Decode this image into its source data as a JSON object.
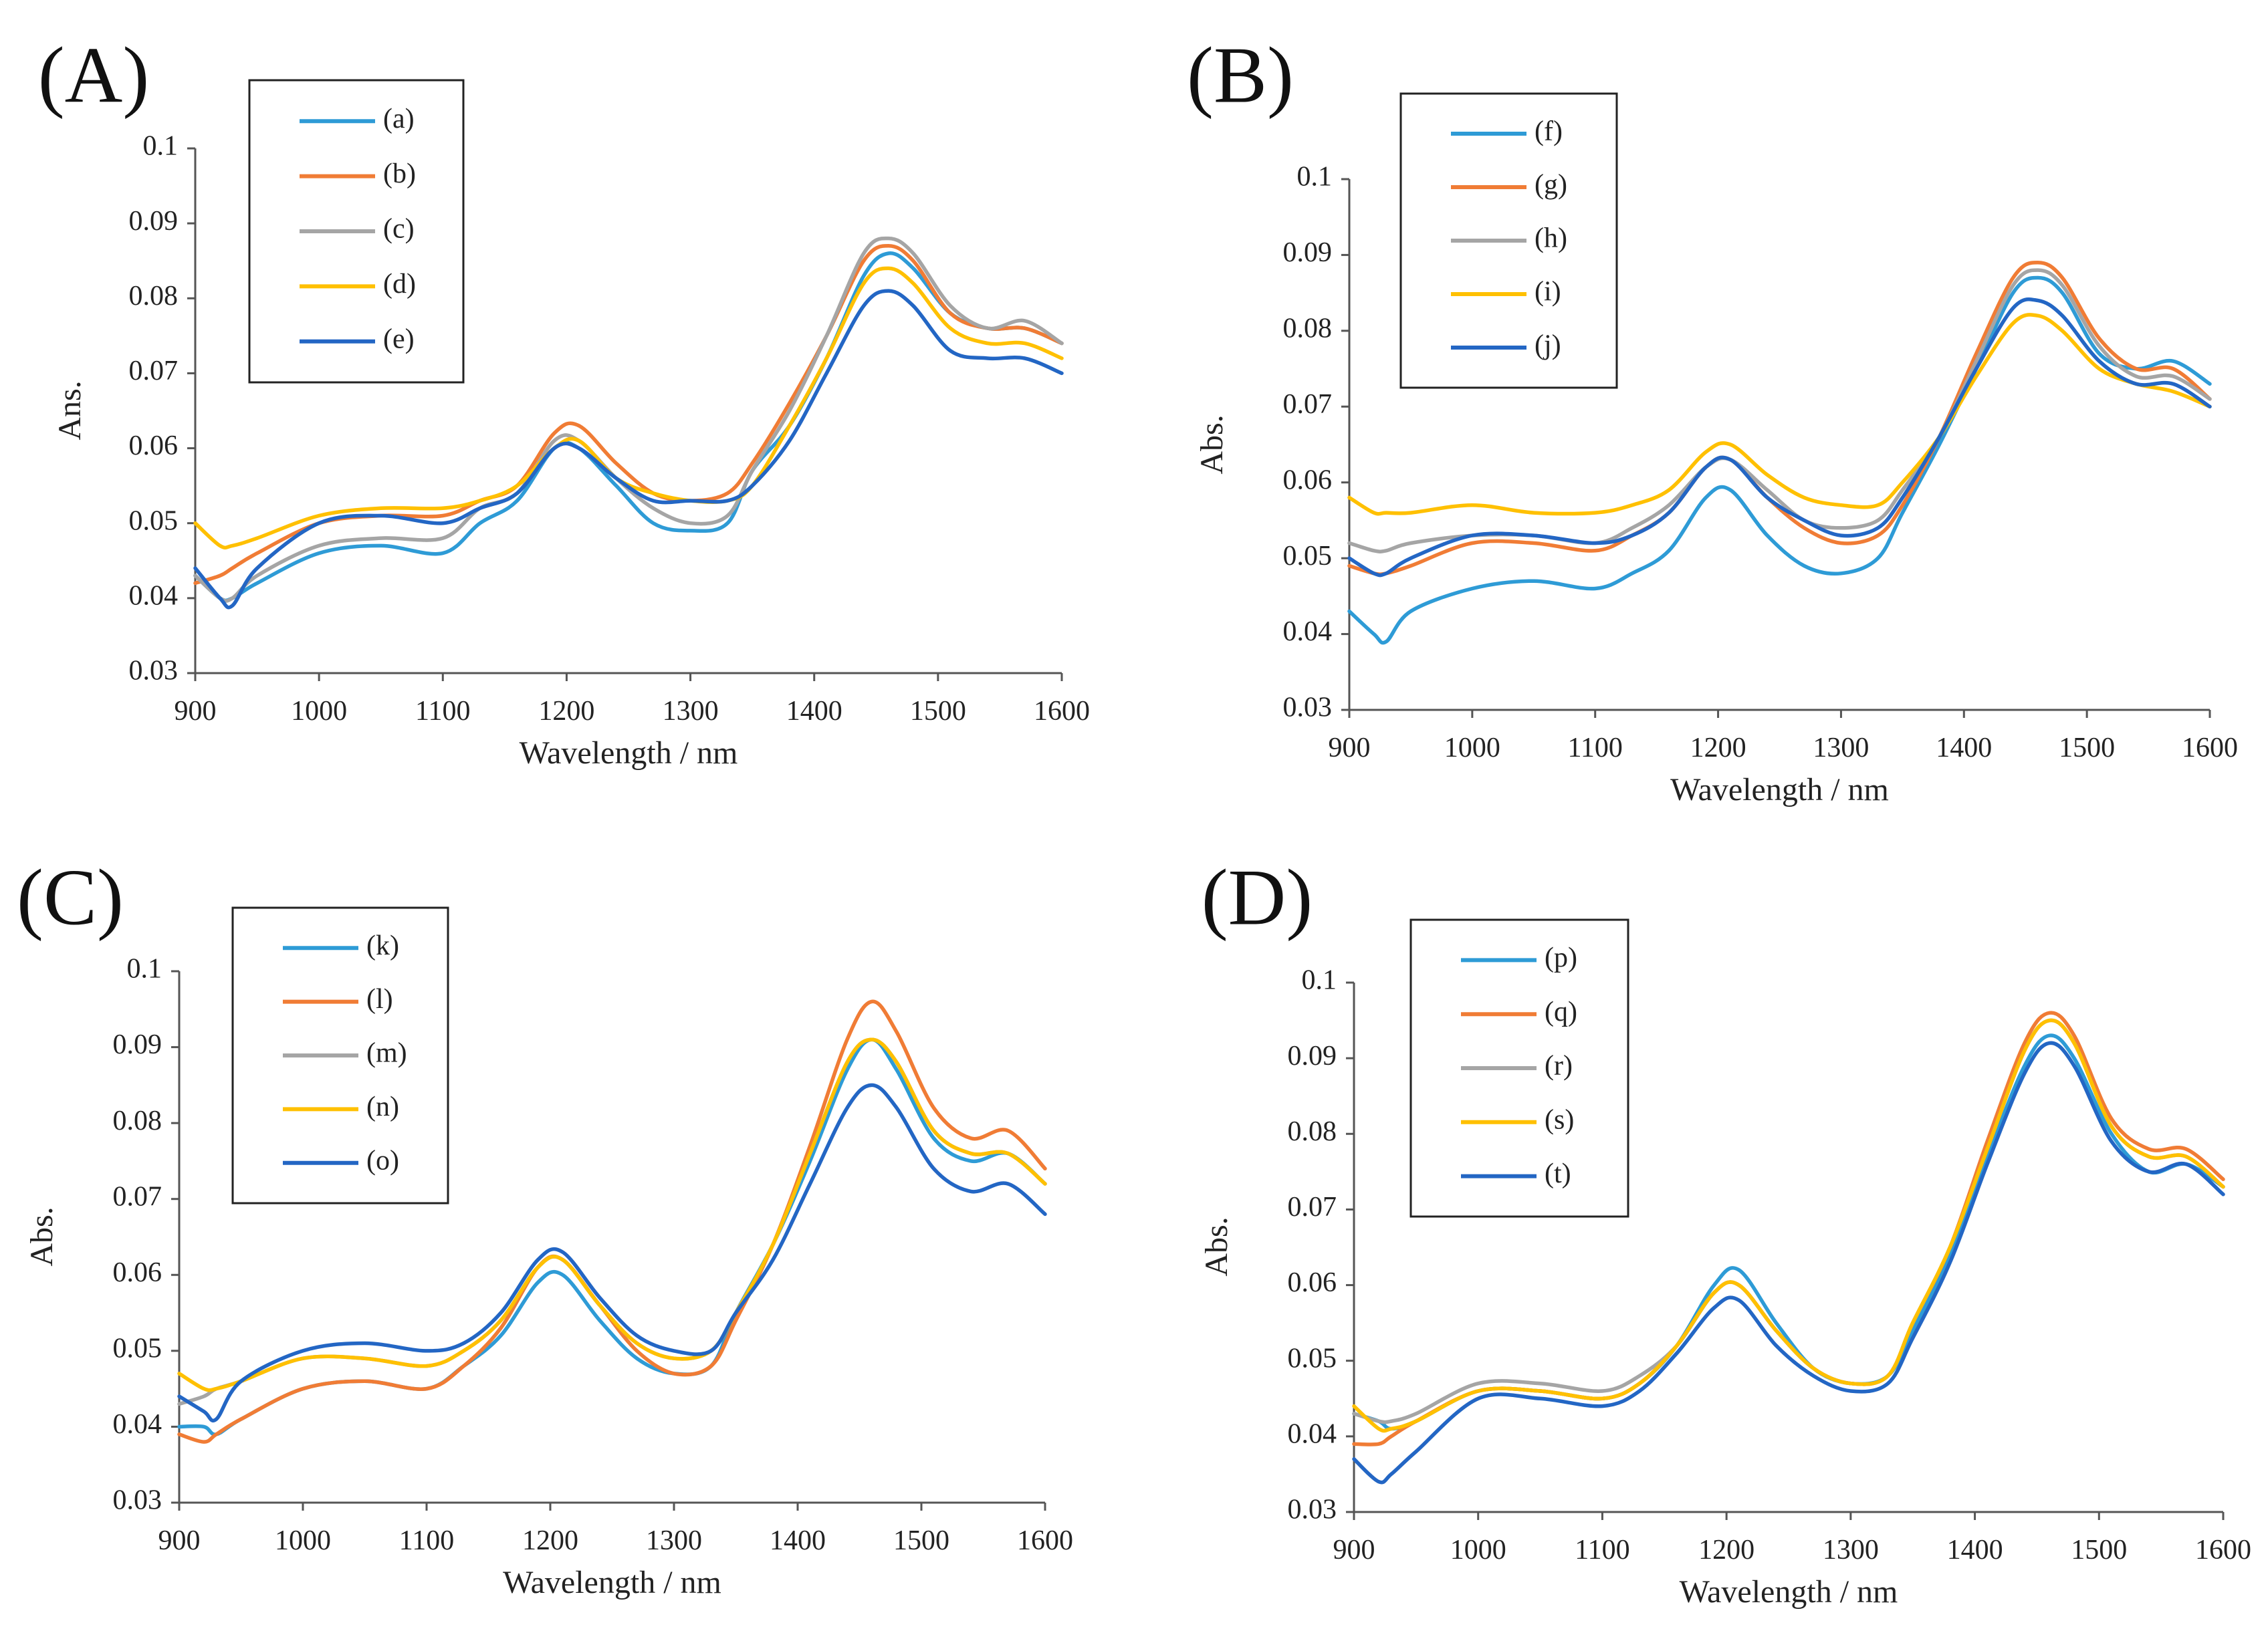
{
  "chart_data": [
    {
      "type": "line",
      "panel": "(A)",
      "xlabel": "Wavelength / nm",
      "ylabel": "Ans.",
      "xlim": [
        900,
        1600
      ],
      "ylim": [
        0.03,
        0.1
      ],
      "x_ticks": [
        "900",
        "1000",
        "1100",
        "1200",
        "1300",
        "1400",
        "1500",
        "1600"
      ],
      "y_ticks": [
        "0.03",
        "0.04",
        "0.05",
        "0.06",
        "0.07",
        "0.08",
        "0.09",
        "0.1"
      ],
      "grid": false,
      "legend_position": "top-left",
      "x": [
        900,
        920,
        930,
        950,
        1000,
        1050,
        1100,
        1130,
        1160,
        1190,
        1210,
        1240,
        1270,
        1300,
        1330,
        1350,
        1380,
        1410,
        1440,
        1460,
        1480,
        1510,
        1540,
        1570,
        1600
      ],
      "series": [
        {
          "name": "(a)",
          "color": "#2E9BD6",
          "values": [
            0.043,
            0.04,
            0.04,
            0.042,
            0.046,
            0.047,
            0.046,
            0.05,
            0.053,
            0.06,
            0.06,
            0.055,
            0.05,
            0.049,
            0.05,
            0.057,
            0.063,
            0.072,
            0.083,
            0.086,
            0.084,
            0.078,
            0.076,
            0.076,
            0.074
          ]
        },
        {
          "name": "(b)",
          "color": "#F07C35",
          "values": [
            0.042,
            0.043,
            0.044,
            0.046,
            0.05,
            0.051,
            0.051,
            0.053,
            0.055,
            0.062,
            0.063,
            0.058,
            0.054,
            0.053,
            0.054,
            0.058,
            0.066,
            0.075,
            0.085,
            0.087,
            0.085,
            0.078,
            0.076,
            0.076,
            0.074
          ]
        },
        {
          "name": "(c)",
          "color": "#A5A5A5",
          "values": [
            0.043,
            0.04,
            0.04,
            0.043,
            0.047,
            0.048,
            0.048,
            0.052,
            0.054,
            0.061,
            0.061,
            0.056,
            0.052,
            0.05,
            0.051,
            0.057,
            0.065,
            0.075,
            0.086,
            0.088,
            0.086,
            0.079,
            0.076,
            0.077,
            0.074
          ]
        },
        {
          "name": "(d)",
          "color": "#FFC000",
          "values": [
            0.05,
            0.047,
            0.047,
            0.048,
            0.051,
            0.052,
            0.052,
            0.053,
            0.055,
            0.06,
            0.061,
            0.056,
            0.054,
            0.053,
            0.053,
            0.055,
            0.063,
            0.072,
            0.082,
            0.084,
            0.082,
            0.076,
            0.074,
            0.074,
            0.072
          ]
        },
        {
          "name": "(e)",
          "color": "#2366C4",
          "values": [
            0.044,
            0.04,
            0.039,
            0.044,
            0.05,
            0.051,
            0.05,
            0.052,
            0.054,
            0.06,
            0.06,
            0.056,
            0.053,
            0.053,
            0.053,
            0.055,
            0.061,
            0.07,
            0.079,
            0.081,
            0.079,
            0.073,
            0.072,
            0.072,
            0.07
          ]
        }
      ]
    },
    {
      "type": "line",
      "panel": "(B)",
      "xlabel": "Wavelength / nm",
      "ylabel": "Abs.",
      "xlim": [
        900,
        1600
      ],
      "ylim": [
        0.03,
        0.1
      ],
      "x_ticks": [
        "900",
        "1000",
        "1100",
        "1200",
        "1300",
        "1400",
        "1500",
        "1600"
      ],
      "y_ticks": [
        "0.03",
        "0.04",
        "0.05",
        "0.06",
        "0.07",
        "0.08",
        "0.09",
        "0.1"
      ],
      "grid": false,
      "legend_position": "top-left",
      "x": [
        900,
        920,
        930,
        950,
        1000,
        1050,
        1100,
        1130,
        1160,
        1190,
        1210,
        1240,
        1270,
        1300,
        1330,
        1350,
        1380,
        1410,
        1440,
        1460,
        1480,
        1510,
        1540,
        1570,
        1600
      ],
      "series": [
        {
          "name": "(f)",
          "color": "#2E9BD6",
          "values": [
            0.043,
            0.04,
            0.039,
            0.043,
            0.046,
            0.047,
            0.046,
            0.048,
            0.051,
            0.058,
            0.059,
            0.053,
            0.049,
            0.048,
            0.05,
            0.056,
            0.065,
            0.075,
            0.085,
            0.087,
            0.085,
            0.077,
            0.075,
            0.076,
            0.073
          ]
        },
        {
          "name": "(g)",
          "color": "#F07C35",
          "values": [
            0.049,
            0.048,
            0.048,
            0.049,
            0.052,
            0.052,
            0.051,
            0.053,
            0.056,
            0.062,
            0.063,
            0.058,
            0.054,
            0.052,
            0.053,
            0.057,
            0.066,
            0.077,
            0.087,
            0.089,
            0.087,
            0.079,
            0.075,
            0.075,
            0.071
          ]
        },
        {
          "name": "(h)",
          "color": "#A5A5A5",
          "values": [
            0.052,
            0.051,
            0.051,
            0.052,
            0.053,
            0.053,
            0.052,
            0.054,
            0.057,
            0.062,
            0.063,
            0.059,
            0.055,
            0.054,
            0.055,
            0.059,
            0.066,
            0.076,
            0.086,
            0.088,
            0.086,
            0.078,
            0.074,
            0.074,
            0.071
          ]
        },
        {
          "name": "(i)",
          "color": "#FFC000",
          "values": [
            0.058,
            0.056,
            0.056,
            0.056,
            0.057,
            0.056,
            0.056,
            0.057,
            0.059,
            0.064,
            0.065,
            0.061,
            0.058,
            0.057,
            0.057,
            0.06,
            0.066,
            0.074,
            0.081,
            0.082,
            0.08,
            0.075,
            0.073,
            0.072,
            0.07
          ]
        },
        {
          "name": "(j)",
          "color": "#2366C4",
          "values": [
            0.05,
            0.048,
            0.048,
            0.05,
            0.053,
            0.053,
            0.052,
            0.053,
            0.056,
            0.062,
            0.063,
            0.058,
            0.055,
            0.053,
            0.054,
            0.058,
            0.066,
            0.075,
            0.083,
            0.084,
            0.082,
            0.076,
            0.073,
            0.073,
            0.07
          ]
        }
      ]
    },
    {
      "type": "line",
      "panel": "(C)",
      "xlabel": "Wavelength / nm",
      "ylabel": "Abs.",
      "xlim": [
        900,
        1600
      ],
      "ylim": [
        0.03,
        0.1
      ],
      "x_ticks": [
        "900",
        "1000",
        "1100",
        "1200",
        "1300",
        "1400",
        "1500",
        "1600"
      ],
      "y_ticks": [
        "0.03",
        "0.04",
        "0.05",
        "0.06",
        "0.07",
        "0.08",
        "0.09",
        "0.1"
      ],
      "grid": false,
      "legend_position": "top-left",
      "x": [
        900,
        920,
        930,
        950,
        1000,
        1050,
        1100,
        1130,
        1160,
        1190,
        1210,
        1240,
        1270,
        1300,
        1330,
        1350,
        1380,
        1410,
        1440,
        1460,
        1480,
        1510,
        1540,
        1570,
        1600
      ],
      "series": [
        {
          "name": "(k)",
          "color": "#2E9BD6",
          "values": [
            0.04,
            0.04,
            0.039,
            0.041,
            0.045,
            0.046,
            0.045,
            0.048,
            0.052,
            0.059,
            0.06,
            0.054,
            0.049,
            0.047,
            0.048,
            0.055,
            0.064,
            0.075,
            0.087,
            0.091,
            0.087,
            0.078,
            0.075,
            0.076,
            0.072
          ]
        },
        {
          "name": "(l)",
          "color": "#F07C35",
          "values": [
            0.039,
            0.038,
            0.039,
            0.041,
            0.045,
            0.046,
            0.045,
            0.048,
            0.053,
            0.061,
            0.062,
            0.056,
            0.05,
            0.047,
            0.048,
            0.054,
            0.064,
            0.077,
            0.091,
            0.096,
            0.092,
            0.082,
            0.078,
            0.079,
            0.074
          ]
        },
        {
          "name": "(m)",
          "color": "#A5A5A5",
          "values": [
            0.043,
            0.044,
            0.045,
            0.046,
            0.049,
            0.049,
            0.048,
            0.05,
            0.054,
            0.061,
            0.062,
            0.056,
            0.051,
            0.049,
            0.05,
            0.055,
            0.064,
            0.076,
            0.088,
            0.091,
            0.088,
            0.079,
            0.076,
            0.076,
            0.072
          ]
        },
        {
          "name": "(n)",
          "color": "#FFC000",
          "values": [
            0.047,
            0.045,
            0.045,
            0.046,
            0.049,
            0.049,
            0.048,
            0.05,
            0.054,
            0.061,
            0.062,
            0.056,
            0.051,
            0.049,
            0.05,
            0.055,
            0.064,
            0.076,
            0.088,
            0.091,
            0.088,
            0.079,
            0.076,
            0.076,
            0.072
          ]
        },
        {
          "name": "(o)",
          "color": "#2366C4",
          "values": [
            0.044,
            0.042,
            0.041,
            0.046,
            0.05,
            0.051,
            0.05,
            0.051,
            0.055,
            0.062,
            0.063,
            0.057,
            0.052,
            0.05,
            0.05,
            0.055,
            0.062,
            0.072,
            0.082,
            0.085,
            0.082,
            0.074,
            0.071,
            0.072,
            0.068
          ]
        }
      ]
    },
    {
      "type": "line",
      "panel": "(D)",
      "xlabel": "Wavelength / nm",
      "ylabel": "Abs.",
      "xlim": [
        900,
        1600
      ],
      "ylim": [
        0.03,
        0.1
      ],
      "x_ticks": [
        "900",
        "1000",
        "1100",
        "1200",
        "1300",
        "1400",
        "1500",
        "1600"
      ],
      "y_ticks": [
        "0.03",
        "0.04",
        "0.05",
        "0.06",
        "0.07",
        "0.08",
        "0.09",
        "0.1"
      ],
      "grid": false,
      "legend_position": "top-left",
      "x": [
        900,
        920,
        930,
        950,
        1000,
        1050,
        1100,
        1130,
        1160,
        1190,
        1210,
        1240,
        1270,
        1300,
        1330,
        1350,
        1380,
        1410,
        1440,
        1460,
        1480,
        1510,
        1540,
        1570,
        1600
      ],
      "series": [
        {
          "name": "(p)",
          "color": "#2E9BD6",
          "values": [
            0.043,
            0.042,
            0.041,
            0.042,
            0.046,
            0.046,
            0.045,
            0.047,
            0.052,
            0.06,
            0.062,
            0.055,
            0.049,
            0.047,
            0.048,
            0.054,
            0.064,
            0.077,
            0.089,
            0.093,
            0.09,
            0.08,
            0.075,
            0.076,
            0.073
          ]
        },
        {
          "name": "(q)",
          "color": "#F07C35",
          "values": [
            0.039,
            0.039,
            0.04,
            0.042,
            0.046,
            0.046,
            0.045,
            0.047,
            0.052,
            0.059,
            0.06,
            0.054,
            0.049,
            0.047,
            0.048,
            0.055,
            0.065,
            0.079,
            0.092,
            0.096,
            0.093,
            0.082,
            0.078,
            0.078,
            0.074
          ]
        },
        {
          "name": "(r)",
          "color": "#A5A5A5",
          "values": [
            0.043,
            0.042,
            0.042,
            0.043,
            0.047,
            0.047,
            0.046,
            0.048,
            0.052,
            0.059,
            0.06,
            0.054,
            0.049,
            0.047,
            0.048,
            0.055,
            0.065,
            0.078,
            0.091,
            0.095,
            0.092,
            0.081,
            0.077,
            0.077,
            0.073
          ]
        },
        {
          "name": "(s)",
          "color": "#FFC000",
          "values": [
            0.044,
            0.041,
            0.041,
            0.042,
            0.046,
            0.046,
            0.045,
            0.047,
            0.052,
            0.059,
            0.06,
            0.054,
            0.049,
            0.047,
            0.048,
            0.055,
            0.065,
            0.078,
            0.091,
            0.095,
            0.092,
            0.081,
            0.077,
            0.077,
            0.073
          ]
        },
        {
          "name": "(t)",
          "color": "#2366C4",
          "values": [
            0.037,
            0.034,
            0.035,
            0.038,
            0.045,
            0.045,
            0.044,
            0.046,
            0.051,
            0.057,
            0.058,
            0.052,
            0.048,
            0.046,
            0.047,
            0.053,
            0.063,
            0.076,
            0.088,
            0.092,
            0.089,
            0.079,
            0.075,
            0.076,
            0.072
          ]
        }
      ]
    }
  ]
}
